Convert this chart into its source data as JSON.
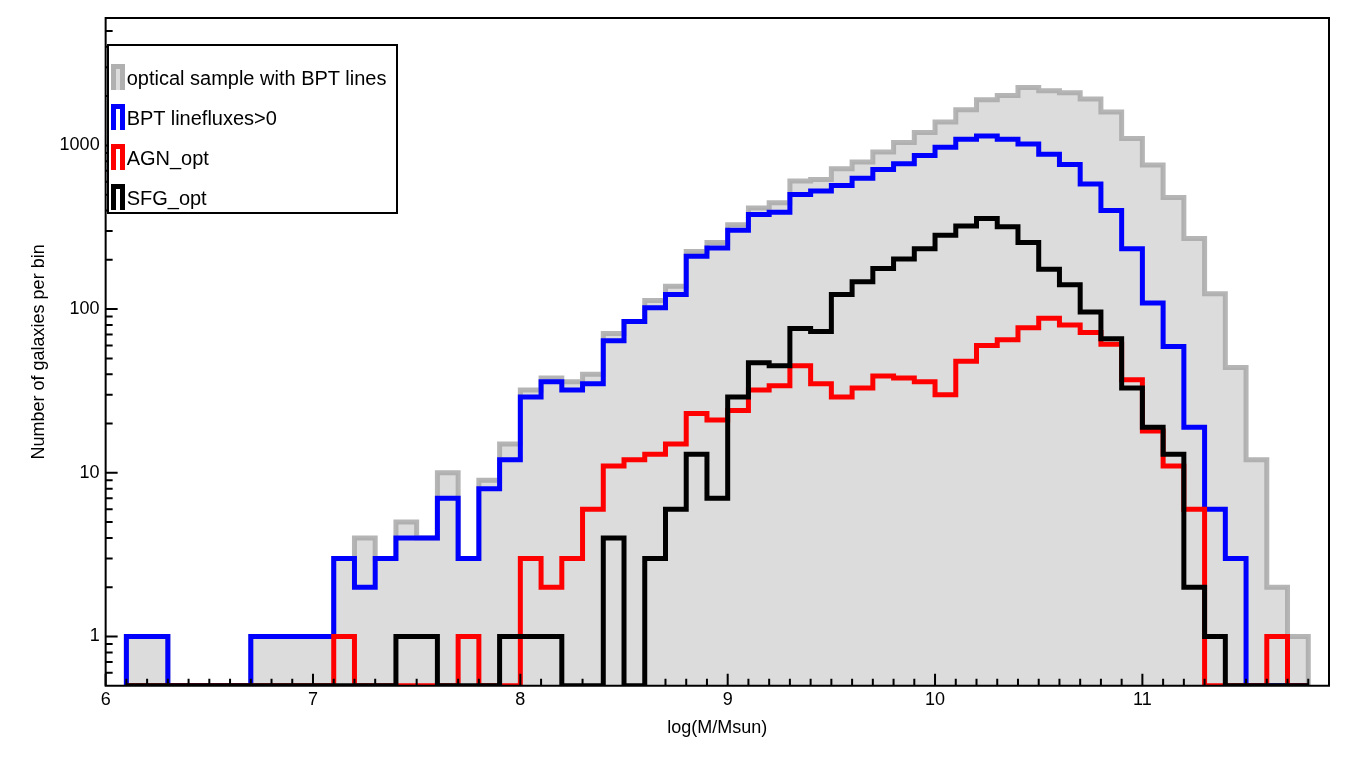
{
  "chart_data": {
    "type": "histogram",
    "xlabel": "log(M/Msun)",
    "ylabel": "Number of galaxies per bin",
    "bins": [
      6.1,
      6.2,
      6.3,
      6.4,
      6.5,
      6.6,
      6.7,
      6.8,
      6.9,
      7.0,
      7.1,
      7.2,
      7.3,
      7.4,
      7.5,
      7.6,
      7.7,
      7.8,
      7.9,
      8.0,
      8.1,
      8.2,
      8.3,
      8.4,
      8.5,
      8.6,
      8.7,
      8.8,
      8.9,
      9.0,
      9.1,
      9.2,
      9.3,
      9.4,
      9.5,
      9.6,
      9.7,
      9.8,
      9.9,
      10.0,
      10.1,
      10.2,
      10.3,
      10.4,
      10.5,
      10.6,
      10.7,
      10.8,
      10.9,
      11.0,
      11.1,
      11.2,
      11.3,
      11.4,
      11.5,
      11.6,
      11.7,
      11.8
    ],
    "series": [
      {
        "name": "optical sample with BPT lines",
        "color": "#a8a8a8",
        "values": [
          1,
          1,
          null,
          null,
          null,
          null,
          1,
          1,
          1,
          1,
          3,
          4,
          3,
          5,
          4,
          10,
          3,
          9,
          15,
          32,
          38,
          36,
          40,
          71,
          84,
          113,
          138,
          225,
          255,
          328,
          415,
          446,
          606,
          620,
          721,
          793,
          910,
          1040,
          1200,
          1390,
          1650,
          1900,
          2020,
          2260,
          2160,
          2100,
          1920,
          1600,
          1100,
          760,
          480,
          270,
          124,
          44,
          12,
          2,
          1
        ]
      },
      {
        "name": "BPT linefluxes>0",
        "color": "#0000ff",
        "values": [
          1,
          1,
          null,
          null,
          null,
          null,
          1,
          1,
          1,
          1,
          3,
          2,
          3,
          4,
          4,
          7,
          3,
          8,
          12,
          29,
          36,
          32,
          35,
          64,
          84,
          102,
          123,
          210,
          236,
          303,
          378,
          391,
          501,
          526,
          569,
          631,
          712,
          772,
          867,
          973,
          1090,
          1143,
          1090,
          1019,
          882,
          763,
          582,
          400,
          234,
          109,
          59,
          19,
          6,
          3,
          null,
          null,
          null
        ]
      },
      {
        "name": "AGN_opt",
        "color": "#ff0000",
        "values": [
          null,
          null,
          null,
          null,
          null,
          null,
          null,
          null,
          null,
          null,
          1,
          null,
          null,
          null,
          null,
          null,
          1,
          null,
          null,
          3,
          2,
          3,
          6,
          11,
          12,
          13,
          15,
          23,
          21,
          24,
          32,
          34,
          45,
          35,
          29,
          33,
          39,
          38,
          36,
          30,
          48,
          60,
          65,
          77,
          88,
          80,
          72,
          61,
          37,
          18,
          11,
          6,
          null,
          null,
          null,
          1,
          null
        ]
      },
      {
        "name": "SFG_opt",
        "color": "#000000",
        "values": [
          null,
          null,
          null,
          null,
          null,
          null,
          null,
          null,
          null,
          null,
          null,
          null,
          null,
          1,
          1,
          null,
          null,
          null,
          1,
          1,
          1,
          null,
          null,
          4,
          null,
          3,
          6,
          13,
          7,
          29,
          47,
          45,
          76,
          73,
          123,
          147,
          177,
          202,
          234,
          283,
          322,
          357,
          318,
          255,
          175,
          141,
          96,
          66,
          33,
          19,
          13,
          2,
          1,
          null,
          null,
          null,
          null
        ]
      }
    ],
    "xlim": [
      6,
      11.9
    ],
    "xticks": [
      6,
      {
        "value": 6.1,
        "label": null
      },
      {
        "value": 6.2,
        "label": null
      },
      {
        "value": 6.3,
        "label": null
      },
      {
        "value": 6.4,
        "label": null
      },
      {
        "value": 6.5,
        "label": null
      },
      {
        "value": 6.6,
        "label": null
      },
      {
        "value": 6.7,
        "label": null
      },
      {
        "value": 6.8,
        "label": null
      },
      {
        "value": 6.9,
        "label": null
      },
      7,
      {
        "value": 7.1,
        "label": null
      },
      {
        "value": 7.2,
        "label": null
      },
      {
        "value": 7.3,
        "label": null
      },
      {
        "value": 7.4,
        "label": null
      },
      {
        "value": 7.5,
        "label": null
      },
      {
        "value": 7.6,
        "label": null
      },
      {
        "value": 7.7,
        "label": null
      },
      {
        "value": 7.8,
        "label": null
      },
      {
        "value": 7.9,
        "label": null
      },
      8,
      {
        "value": 8.1,
        "label": null
      },
      {
        "value": 8.2,
        "label": null
      },
      {
        "value": 8.3,
        "label": null
      },
      {
        "value": 8.4,
        "label": null
      },
      {
        "value": 8.5,
        "label": null
      },
      {
        "value": 8.6,
        "label": null
      },
      {
        "value": 8.7,
        "label": null
      },
      {
        "value": 8.8,
        "label": null
      },
      {
        "value": 8.9,
        "label": null
      },
      9,
      {
        "value": 9.1,
        "label": null
      },
      {
        "value": 9.2,
        "label": null
      },
      {
        "value": 9.3,
        "label": null
      },
      {
        "value": 9.4,
        "label": null
      },
      {
        "value": 9.5,
        "label": null
      },
      {
        "value": 9.6,
        "label": null
      },
      {
        "value": 9.7,
        "label": null
      },
      {
        "value": 9.8,
        "label": null
      },
      {
        "value": 9.9,
        "label": null
      },
      10,
      {
        "value": 10.1,
        "label": null
      },
      {
        "value": 10.2,
        "label": null
      },
      {
        "value": 10.3,
        "label": null
      },
      {
        "value": 10.4,
        "label": null
      },
      {
        "value": 10.5,
        "label": null
      },
      {
        "value": 10.6,
        "label": null
      },
      {
        "value": 10.7,
        "label": null
      },
      {
        "value": 10.8,
        "label": null
      },
      {
        "value": 10.9,
        "label": null
      },
      11,
      {
        "value": 11.1,
        "label": null
      },
      {
        "value": 11.2,
        "label": null
      },
      {
        "value": 11.3,
        "label": null
      },
      {
        "value": 11.4,
        "label": null
      },
      {
        "value": 11.5,
        "label": null
      },
      {
        "value": 11.6,
        "label": null
      },
      {
        "value": 11.7,
        "label": null
      },
      {
        "value": 11.8,
        "label": null
      }
    ],
    "ylim": [
      0.5,
      6000
    ],
    "yticks": [
      {
        "value": 0.6,
        "label": null
      },
      {
        "value": 0.7,
        "label": null
      },
      {
        "value": 0.8,
        "label": null
      },
      {
        "value": 0.9,
        "label": null
      },
      1,
      {
        "value": 2,
        "label": null
      },
      {
        "value": 3,
        "label": null
      },
      {
        "value": 4,
        "label": null
      },
      {
        "value": 5,
        "label": null
      },
      {
        "value": 6,
        "label": null
      },
      {
        "value": 7,
        "label": null
      },
      {
        "value": 8,
        "label": null
      },
      {
        "value": 9,
        "label": null
      },
      10,
      {
        "value": 20,
        "label": null
      },
      {
        "value": 30,
        "label": null
      },
      {
        "value": 40,
        "label": null
      },
      {
        "value": 50,
        "label": null
      },
      {
        "value": 60,
        "label": null
      },
      {
        "value": 70,
        "label": null
      },
      {
        "value": 80,
        "label": null
      },
      {
        "value": 90,
        "label": null
      },
      100,
      {
        "value": 200,
        "label": null
      },
      {
        "value": 300,
        "label": null
      },
      {
        "value": 400,
        "label": null
      },
      {
        "value": 500,
        "label": null
      },
      {
        "value": 600,
        "label": null
      },
      {
        "value": 700,
        "label": null
      },
      {
        "value": 800,
        "label": null
      },
      {
        "value": 900,
        "label": null
      },
      1000,
      {
        "value": 2000,
        "label": null
      },
      {
        "value": 3000,
        "label": null
      },
      {
        "value": 4000,
        "label": null
      },
      {
        "value": 5000,
        "label": null
      }
    ],
    "log": true,
    "grid": false,
    "legend": "top left"
  }
}
